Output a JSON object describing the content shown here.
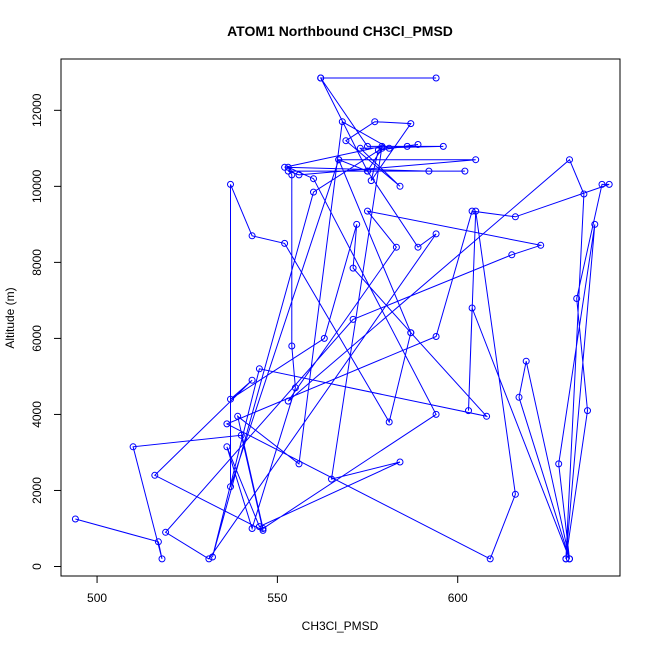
{
  "chart_data": {
    "type": "line",
    "title": "ATOM1 Northbound CH3Cl_PMSD",
    "xlabel": "CH3Cl_PMSD",
    "ylabel": "Altitude (m)",
    "xlim": [
      490,
      645
    ],
    "ylim": [
      -250,
      13350
    ],
    "xticks": [
      500,
      550,
      600
    ],
    "yticks": [
      0,
      2000,
      4000,
      6000,
      8000,
      10000,
      12000
    ],
    "xtick_labels": [
      "500",
      "550",
      "600"
    ],
    "ytick_labels": [
      "0",
      "2000",
      "4000",
      "6000",
      "8000",
      "10000",
      "12000"
    ],
    "grid": false,
    "series": [
      {
        "color": "#0000ff",
        "points": [
          [
            494,
            1250
          ],
          [
            517,
            650
          ],
          [
            518,
            200
          ],
          [
            510,
            3150
          ],
          [
            540,
            3450
          ],
          [
            546,
            950
          ],
          [
            516,
            2400
          ],
          [
            543,
            4900
          ],
          [
            537,
            4400
          ],
          [
            563,
            6000
          ],
          [
            572,
            9000
          ],
          [
            571,
            7850
          ],
          [
            587,
            6150
          ],
          [
            608,
            3950
          ],
          [
            545,
            5200
          ],
          [
            532,
            250
          ],
          [
            560,
            9850
          ],
          [
            579,
            11000
          ],
          [
            575,
            10400
          ],
          [
            562,
            12850
          ],
          [
            594,
            12850
          ],
          [
            562,
            12850
          ],
          [
            575,
            11050
          ],
          [
            586,
            11050
          ],
          [
            596,
            11050
          ],
          [
            573,
            11000
          ],
          [
            584,
            10000
          ],
          [
            569,
            11200
          ],
          [
            577,
            11700
          ],
          [
            587,
            11650
          ],
          [
            576,
            10150
          ],
          [
            578,
            10950
          ],
          [
            589,
            11100
          ],
          [
            581,
            11000
          ],
          [
            568,
            11700
          ],
          [
            556,
            2700
          ],
          [
            539,
            3950
          ],
          [
            546,
            1000
          ],
          [
            594,
            4000
          ],
          [
            560,
            10200
          ],
          [
            553,
            10500
          ],
          [
            554,
            10300
          ],
          [
            554,
            5800
          ],
          [
            555,
            4700
          ],
          [
            543,
            1000
          ],
          [
            536,
            3150
          ],
          [
            545,
            1050
          ],
          [
            584,
            2750
          ],
          [
            565,
            2300
          ],
          [
            579,
            11050
          ],
          [
            552,
            10500
          ],
          [
            592,
            10400
          ],
          [
            602,
            10400
          ],
          [
            553,
            10400
          ],
          [
            556,
            10300
          ],
          [
            605,
            10700
          ],
          [
            567,
            10700
          ],
          [
            587,
            6150
          ],
          [
            581,
            3800
          ],
          [
            552,
            8500
          ],
          [
            543,
            8700
          ],
          [
            537,
            10050
          ],
          [
            537,
            2100
          ],
          [
            567,
            10700
          ],
          [
            575,
            10400
          ],
          [
            589,
            8400
          ],
          [
            594,
            8750
          ],
          [
            531,
            200
          ],
          [
            519,
            900
          ],
          [
            571,
            6500
          ],
          [
            615,
            8200
          ],
          [
            623,
            8450
          ],
          [
            575,
            9350
          ],
          [
            583,
            8400
          ],
          [
            553,
            4350
          ],
          [
            631,
            10700
          ],
          [
            635,
            9800
          ],
          [
            630,
            200
          ],
          [
            636,
            4100
          ],
          [
            633,
            7050
          ],
          [
            640,
            10050
          ],
          [
            642,
            10050
          ],
          [
            616,
            9200
          ],
          [
            604,
            9350
          ],
          [
            594,
            6050
          ],
          [
            536,
            3750
          ],
          [
            609,
            200
          ],
          [
            616,
            1900
          ],
          [
            605,
            9350
          ],
          [
            603,
            4100
          ],
          [
            604,
            6800
          ],
          [
            631,
            200
          ],
          [
            617,
            4450
          ],
          [
            619,
            5400
          ],
          [
            631,
            200
          ],
          [
            628,
            2700
          ],
          [
            638,
            9000
          ],
          [
            630,
            200
          ]
        ]
      }
    ]
  }
}
